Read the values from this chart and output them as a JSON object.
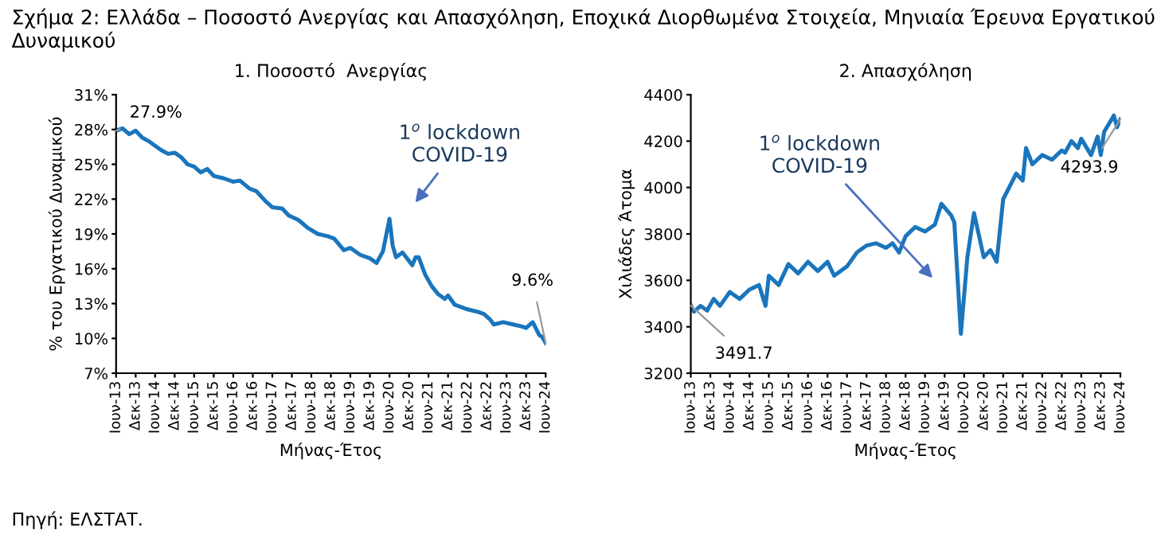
{
  "chart_data": [
    {
      "type": "line",
      "title": "1. Ποσοστό  Ανεργίας",
      "xlabel": "Μήνας-Έτος",
      "ylabel": "% του Εργατικού Δυναμικού",
      "x": [
        "2013-06",
        "2013-08",
        "2013-10",
        "2013-12",
        "2014-02",
        "2014-04",
        "2014-06",
        "2014-08",
        "2014-10",
        "2014-12",
        "2015-02",
        "2015-04",
        "2015-06",
        "2015-08",
        "2015-10",
        "2015-12",
        "2016-03",
        "2016-06",
        "2016-08",
        "2016-11",
        "2017-01",
        "2017-04",
        "2017-06",
        "2017-09",
        "2017-11",
        "2018-02",
        "2018-05",
        "2018-08",
        "2018-11",
        "2019-01",
        "2019-04",
        "2019-06",
        "2019-09",
        "2019-12",
        "2020-02",
        "2020-04",
        "2020-06",
        "2020-07",
        "2020-08",
        "2020-10",
        "2021-01",
        "2021-02",
        "2021-03",
        "2021-05",
        "2021-07",
        "2021-09",
        "2021-11",
        "2021-12",
        "2022-02",
        "2022-06",
        "2022-09",
        "2022-11",
        "2023-01",
        "2023-02",
        "2023-05",
        "2023-08",
        "2023-11",
        "2023-12",
        "2024-02",
        "2024-04",
        "2024-05",
        "2024-06"
      ],
      "series": [
        {
          "color": "#1a75bc",
          "values": [
            27.9,
            28.1,
            27.6,
            27.9,
            27.3,
            27.0,
            26.6,
            26.2,
            25.9,
            26.0,
            25.6,
            25.0,
            24.8,
            24.3,
            24.6,
            24.0,
            23.8,
            23.5,
            23.6,
            22.9,
            22.7,
            21.8,
            21.3,
            21.2,
            20.6,
            20.2,
            19.5,
            19.0,
            18.8,
            18.6,
            17.6,
            17.8,
            17.2,
            16.9,
            16.5,
            17.5,
            20.3,
            18.0,
            17.0,
            17.4,
            16.3,
            17.0,
            17.0,
            15.5,
            14.5,
            13.8,
            13.4,
            13.7,
            12.9,
            12.5,
            12.3,
            12.1,
            11.6,
            11.2,
            11.4,
            11.2,
            11.0,
            10.9,
            11.4,
            10.3,
            10.1,
            9.6
          ],
          "value_labels": [
            "27.9%",
            null,
            null,
            null,
            null,
            null,
            null,
            null,
            null,
            null,
            null,
            null,
            null,
            null,
            null,
            null,
            null,
            null,
            null,
            null,
            null,
            null,
            null,
            null,
            null,
            null,
            null,
            null,
            null,
            null,
            null,
            null,
            null,
            null,
            null,
            null,
            null,
            null,
            null,
            null,
            null,
            null,
            null,
            null,
            null,
            null,
            null,
            null,
            null,
            null,
            null,
            null,
            null,
            null,
            null,
            null,
            null,
            null,
            null,
            null,
            null,
            "9.6%"
          ]
        }
      ],
      "xlim": [
        "2013-06",
        "2024-06"
      ],
      "xticks": [
        {
          "value": "2013-06",
          "label": "Ιουν-13"
        },
        {
          "value": "2013-12",
          "label": "Δεκ-13"
        },
        {
          "value": "2014-06",
          "label": "Ιουν-14"
        },
        {
          "value": "2014-12",
          "label": "Δεκ-14"
        },
        {
          "value": "2015-06",
          "label": "Ιουν-15"
        },
        {
          "value": "2015-12",
          "label": "Δεκ-15"
        },
        {
          "value": "2016-06",
          "label": "Ιουν-16"
        },
        {
          "value": "2016-12",
          "label": "Δεκ-16"
        },
        {
          "value": "2017-06",
          "label": "Ιουν-17"
        },
        {
          "value": "2017-12",
          "label": "Δεκ-17"
        },
        {
          "value": "2018-06",
          "label": "Ιουν-18"
        },
        {
          "value": "2018-12",
          "label": "Δεκ-18"
        },
        {
          "value": "2019-06",
          "label": "Ιουν-19"
        },
        {
          "value": "2019-12",
          "label": "Δεκ-19"
        },
        {
          "value": "2020-06",
          "label": "Ιουν-20"
        },
        {
          "value": "2020-12",
          "label": "Δεκ-20"
        },
        {
          "value": "2021-06",
          "label": "Ιουν-21"
        },
        {
          "value": "2021-12",
          "label": "Δεκ-21"
        },
        {
          "value": "2022-06",
          "label": "Ιουν-22"
        },
        {
          "value": "2022-12",
          "label": "Δεκ-22"
        },
        {
          "value": "2023-06",
          "label": "Ιουν-23"
        },
        {
          "value": "2023-12",
          "label": "Δεκ-23"
        },
        {
          "value": "2024-06",
          "label": "Ιουν-24"
        }
      ],
      "ylim": [
        7,
        31
      ],
      "yticks": [
        {
          "value": 7,
          "label": "7%"
        },
        {
          "value": 10,
          "label": "10%"
        },
        {
          "value": 13,
          "label": "13%"
        },
        {
          "value": 16,
          "label": "16%"
        },
        {
          "value": 19,
          "label": "19%"
        },
        {
          "value": 22,
          "label": "22%"
        },
        {
          "value": 25,
          "label": "25%"
        },
        {
          "value": 28,
          "label": "28%"
        },
        {
          "value": 31,
          "label": "31%"
        }
      ],
      "grid": false,
      "legend": false,
      "annotations": [
        "Σχήμα 2: Ελλάδα – Ποσοστό Ανεργίας και Απασχόληση, Εποχικά Διορθωμένα Στοιχεία, Μηνιαία Έρευνα Εργατικού Δυναμικού",
        "1$^{o}$ lockdown\nCOVID-19",
        "Πηγή: ΕΛΣΤΑΤ."
      ]
    },
    {
      "type": "line",
      "title": "2. Απασχόληση",
      "xlabel": "Μήνας-Έτος",
      "ylabel": "Χιλιάδες Άτομα",
      "x": [
        "2013-06",
        "2013-07",
        "2013-09",
        "2013-11",
        "2014-01",
        "2014-03",
        "2014-06",
        "2014-09",
        "2014-12",
        "2015-03",
        "2015-05",
        "2015-06",
        "2015-09",
        "2015-12",
        "2016-03",
        "2016-06",
        "2016-09",
        "2016-12",
        "2017-02",
        "2017-06",
        "2017-09",
        "2017-12",
        "2018-03",
        "2018-06",
        "2018-08",
        "2018-10",
        "2018-12",
        "2019-03",
        "2019-06",
        "2019-09",
        "2019-11",
        "2020-02",
        "2020-03",
        "2020-05",
        "2020-07",
        "2020-09",
        "2020-12",
        "2021-02",
        "2021-04",
        "2021-06",
        "2021-10",
        "2021-12",
        "2022-01",
        "2022-03",
        "2022-06",
        "2022-09",
        "2022-12",
        "2023-01",
        "2023-03",
        "2023-05",
        "2023-06",
        "2023-09",
        "2023-11",
        "2023-12",
        "2024-01",
        "2024-04",
        "2024-05",
        "2024-06"
      ],
      "series": [
        {
          "color": "#1a75bc",
          "values": [
            3491.7,
            3465,
            3490,
            3470,
            3520,
            3490,
            3550,
            3520,
            3560,
            3580,
            3490,
            3620,
            3580,
            3670,
            3630,
            3680,
            3640,
            3680,
            3620,
            3660,
            3720,
            3750,
            3760,
            3740,
            3760,
            3720,
            3790,
            3830,
            3810,
            3840,
            3930,
            3880,
            3850,
            3370,
            3700,
            3890,
            3700,
            3730,
            3680,
            3950,
            4060,
            4030,
            4170,
            4100,
            4140,
            4120,
            4160,
            4150,
            4200,
            4170,
            4210,
            4140,
            4220,
            4140,
            4240,
            4310,
            4260,
            4293.9
          ],
          "value_labels": [
            "3491.7",
            null,
            null,
            null,
            null,
            null,
            null,
            null,
            null,
            null,
            null,
            null,
            null,
            null,
            null,
            null,
            null,
            null,
            null,
            null,
            null,
            null,
            null,
            null,
            null,
            null,
            null,
            null,
            null,
            null,
            null,
            null,
            null,
            null,
            null,
            null,
            null,
            null,
            null,
            null,
            null,
            null,
            null,
            null,
            null,
            null,
            null,
            null,
            null,
            null,
            null,
            null,
            null,
            null,
            null,
            null,
            null,
            "4293.9"
          ]
        }
      ],
      "xlim": [
        "2013-06",
        "2024-06"
      ],
      "xticks": [
        {
          "value": "2013-06",
          "label": "Ιουν-13"
        },
        {
          "value": "2013-12",
          "label": "Δεκ-13"
        },
        {
          "value": "2014-06",
          "label": "Ιουν-14"
        },
        {
          "value": "2014-12",
          "label": "Δεκ-14"
        },
        {
          "value": "2015-06",
          "label": "Ιουν-15"
        },
        {
          "value": "2015-12",
          "label": "Δεκ-15"
        },
        {
          "value": "2016-06",
          "label": "Ιουν-16"
        },
        {
          "value": "2016-12",
          "label": "Δεκ-16"
        },
        {
          "value": "2017-06",
          "label": "Ιουν-17"
        },
        {
          "value": "2017-12",
          "label": "Δεκ-17"
        },
        {
          "value": "2018-06",
          "label": "Ιουν-18"
        },
        {
          "value": "2018-12",
          "label": "Δεκ-18"
        },
        {
          "value": "2019-06",
          "label": "Ιουν-19"
        },
        {
          "value": "2019-12",
          "label": "Δεκ-19"
        },
        {
          "value": "2020-06",
          "label": "Ιουν-20"
        },
        {
          "value": "2020-12",
          "label": "Δεκ-20"
        },
        {
          "value": "2021-06",
          "label": "Ιουν-21"
        },
        {
          "value": "2021-12",
          "label": "Δεκ-21"
        },
        {
          "value": "2022-06",
          "label": "Ιουν-22"
        },
        {
          "value": "2022-12",
          "label": "Δεκ-22"
        },
        {
          "value": "2023-06",
          "label": "Ιουν-23"
        },
        {
          "value": "2023-12",
          "label": "Δεκ-23"
        },
        {
          "value": "2024-06",
          "label": "Ιουν-24"
        }
      ],
      "ylim": [
        3200,
        4400
      ],
      "yticks": [
        3200,
        3400,
        3600,
        3800,
        4000,
        4200,
        4400
      ],
      "grid": false,
      "legend": false,
      "annotations": [
        "1$^{o}$ lockdown\nCOVID-19"
      ]
    }
  ]
}
